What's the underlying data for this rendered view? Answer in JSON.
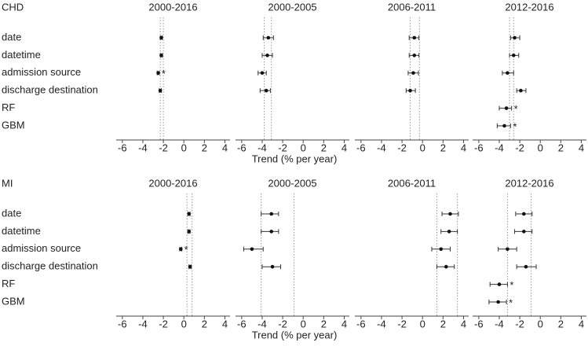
{
  "chart_data": [
    {
      "type": "forest",
      "title": "CHD",
      "categories": [
        "date",
        "datetime",
        "admission source",
        "discharge destination",
        "RF",
        "GBM"
      ],
      "xlim": [
        -6.6,
        4.5
      ],
      "xticks": [
        -6,
        -4,
        -2,
        0,
        2,
        4
      ],
      "xlabel": "Trend (% per year)",
      "facets": [
        {
          "title": "2000-2016",
          "ref_lines": [
            -2.3,
            -2.0
          ],
          "values": [
            -2.2,
            -2.2,
            -2.5,
            -2.3,
            null,
            null
          ],
          "lower": [
            -2.3,
            -2.3,
            -2.6,
            -2.4,
            null,
            null
          ],
          "upper": [
            -2.1,
            -2.1,
            -2.4,
            -2.2,
            null,
            null
          ],
          "flags": [
            null,
            null,
            "*",
            null,
            null,
            null
          ]
        },
        {
          "title": "2000-2005",
          "ref_lines": [
            -3.8,
            -3.1
          ],
          "values": [
            -3.4,
            -3.5,
            -4.0,
            -3.6,
            null,
            null
          ],
          "lower": [
            -3.9,
            -4.0,
            -4.4,
            -4.2,
            null,
            null
          ],
          "upper": [
            -2.9,
            -3.0,
            -3.6,
            -3.2,
            null,
            null
          ],
          "flags": [
            null,
            null,
            null,
            null,
            null,
            null
          ]
        },
        {
          "title": "2006-2011",
          "ref_lines": [
            -1.2,
            -0.3
          ],
          "values": [
            -0.8,
            -0.8,
            -0.9,
            -1.2,
            null,
            null
          ],
          "lower": [
            -1.3,
            -1.3,
            -1.4,
            -1.6,
            null,
            null
          ],
          "upper": [
            -0.35,
            -0.35,
            -0.4,
            -0.7,
            null,
            null
          ],
          "flags": [
            null,
            null,
            null,
            null,
            null,
            null
          ]
        },
        {
          "title": "2012-2016",
          "ref_lines": [
            -3.0,
            -2.6
          ],
          "values": [
            -2.5,
            -2.6,
            -3.2,
            -1.9,
            -3.3,
            -3.5
          ],
          "lower": [
            -2.9,
            -3.0,
            -3.7,
            -2.3,
            -4.0,
            -4.2
          ],
          "upper": [
            -2.0,
            -2.1,
            -2.6,
            -1.4,
            -2.8,
            -2.9
          ],
          "flags": [
            null,
            null,
            null,
            null,
            "*",
            "*"
          ]
        }
      ]
    },
    {
      "type": "forest",
      "title": "MI",
      "categories": [
        "date",
        "datetime",
        "admission source",
        "discharge destination",
        "RF",
        "GBM"
      ],
      "xlim": [
        -6.6,
        4.5
      ],
      "xticks": [
        -6,
        -4,
        -2,
        0,
        2,
        4
      ],
      "xlabel": "Trend (% per year)",
      "facets": [
        {
          "title": "2000-2016",
          "ref_lines": [
            0.3,
            0.8
          ],
          "values": [
            0.5,
            0.5,
            -0.3,
            0.6,
            null,
            null
          ],
          "lower": [
            0.4,
            0.4,
            -0.4,
            0.5,
            null,
            null
          ],
          "upper": [
            0.6,
            0.6,
            -0.2,
            0.7,
            null,
            null
          ],
          "flags": [
            null,
            null,
            "*",
            null,
            null,
            null
          ]
        },
        {
          "title": "2000-2005",
          "ref_lines": [
            -4.1,
            -0.9
          ],
          "values": [
            -3.1,
            -3.1,
            -5.0,
            -3.0,
            null,
            null
          ],
          "lower": [
            -4.1,
            -4.1,
            -5.8,
            -4.0,
            null,
            null
          ],
          "upper": [
            -2.4,
            -2.4,
            -3.9,
            -2.2,
            null,
            null
          ],
          "flags": [
            null,
            null,
            null,
            null,
            null,
            null
          ]
        },
        {
          "title": "2006-2011",
          "ref_lines": [
            1.4,
            3.4
          ],
          "values": [
            2.7,
            2.6,
            1.8,
            2.3,
            null,
            null
          ],
          "lower": [
            1.9,
            1.8,
            0.9,
            1.4,
            null,
            null
          ],
          "upper": [
            3.5,
            3.4,
            2.7,
            3.1,
            null,
            null
          ],
          "flags": [
            null,
            null,
            null,
            null,
            null,
            null
          ]
        },
        {
          "title": "2012-2016",
          "ref_lines": [
            -3.2,
            -0.9
          ],
          "values": [
            -1.6,
            -1.6,
            -3.2,
            -1.4,
            -4.0,
            -4.1
          ],
          "lower": [
            -2.4,
            -2.5,
            -4.1,
            -2.3,
            -4.9,
            -5.0
          ],
          "upper": [
            -0.8,
            -0.8,
            -2.3,
            -0.4,
            -3.2,
            -3.3
          ],
          "flags": [
            null,
            null,
            null,
            null,
            "*",
            "*"
          ]
        }
      ]
    }
  ]
}
